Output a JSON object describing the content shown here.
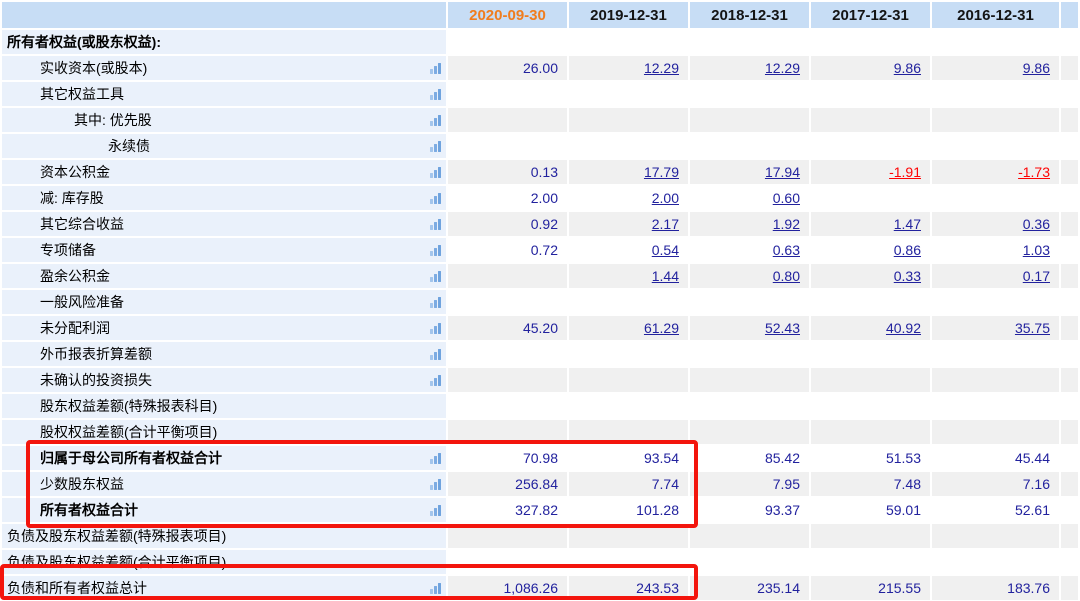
{
  "table": {
    "columns": [
      "2020-09-30",
      "2019-12-31",
      "2018-12-31",
      "2017-12-31",
      "2016-12-31"
    ],
    "current_column_color": "#f07d1e",
    "header_bg_color": "#c7ddf5",
    "value_text_color": "#22229e",
    "negative_value_color": "#fe0303",
    "rows": [
      {
        "label": "所有者权益(或股东权益):",
        "indent": 0,
        "bold": true,
        "icon": false,
        "cells": [
          "",
          "",
          "",
          "",
          ""
        ],
        "styles": [
          "",
          "",
          "",
          "",
          ""
        ]
      },
      {
        "label": "实收资本(或股本)",
        "indent": 1,
        "bold": false,
        "icon": true,
        "cells": [
          "26.00",
          "12.29",
          "12.29",
          "9.86",
          "9.86"
        ],
        "styles": [
          "plain",
          "link",
          "link",
          "link",
          "link"
        ]
      },
      {
        "label": "其它权益工具",
        "indent": 1,
        "bold": false,
        "icon": true,
        "cells": [
          "",
          "",
          "",
          "",
          ""
        ],
        "styles": [
          "",
          "",
          "",
          "",
          ""
        ]
      },
      {
        "label": "其中: 优先股",
        "indent": 2,
        "bold": false,
        "icon": true,
        "cells": [
          "",
          "",
          "",
          "",
          ""
        ],
        "styles": [
          "",
          "",
          "",
          "",
          ""
        ]
      },
      {
        "label": "永续债",
        "indent": 3,
        "bold": false,
        "icon": true,
        "cells": [
          "",
          "",
          "",
          "",
          ""
        ],
        "styles": [
          "",
          "",
          "",
          "",
          ""
        ]
      },
      {
        "label": "资本公积金",
        "indent": 1,
        "bold": false,
        "icon": true,
        "cells": [
          "0.13",
          "17.79",
          "17.94",
          "-1.91",
          "-1.73"
        ],
        "styles": [
          "plain",
          "link",
          "link",
          "neg",
          "neg"
        ]
      },
      {
        "label": "减: 库存股",
        "indent": 1,
        "bold": false,
        "icon": true,
        "cells": [
          "2.00",
          "2.00",
          "0.60",
          "",
          ""
        ],
        "styles": [
          "plain",
          "link",
          "link",
          "",
          ""
        ]
      },
      {
        "label": "其它综合收益",
        "indent": 1,
        "bold": false,
        "icon": true,
        "cells": [
          "0.92",
          "2.17",
          "1.92",
          "1.47",
          "0.36"
        ],
        "styles": [
          "plain",
          "link",
          "link",
          "link",
          "link"
        ]
      },
      {
        "label": "专项储备",
        "indent": 1,
        "bold": false,
        "icon": true,
        "cells": [
          "0.72",
          "0.54",
          "0.63",
          "0.86",
          "1.03"
        ],
        "styles": [
          "plain",
          "link",
          "link",
          "link",
          "link"
        ]
      },
      {
        "label": "盈余公积金",
        "indent": 1,
        "bold": false,
        "icon": true,
        "cells": [
          "",
          "1.44",
          "0.80",
          "0.33",
          "0.17"
        ],
        "styles": [
          "",
          "link",
          "link",
          "link",
          "link"
        ]
      },
      {
        "label": "一般风险准备",
        "indent": 1,
        "bold": false,
        "icon": true,
        "cells": [
          "",
          "",
          "",
          "",
          ""
        ],
        "styles": [
          "",
          "",
          "",
          "",
          ""
        ]
      },
      {
        "label": "未分配利润",
        "indent": 1,
        "bold": false,
        "icon": true,
        "cells": [
          "45.20",
          "61.29",
          "52.43",
          "40.92",
          "35.75"
        ],
        "styles": [
          "plain",
          "link",
          "link",
          "link",
          "link"
        ]
      },
      {
        "label": "外币报表折算差额",
        "indent": 1,
        "bold": false,
        "icon": true,
        "cells": [
          "",
          "",
          "",
          "",
          ""
        ],
        "styles": [
          "",
          "",
          "",
          "",
          ""
        ]
      },
      {
        "label": "未确认的投资损失",
        "indent": 1,
        "bold": false,
        "icon": true,
        "cells": [
          "",
          "",
          "",
          "",
          ""
        ],
        "styles": [
          "",
          "",
          "",
          "",
          ""
        ]
      },
      {
        "label": "股东权益差额(特殊报表科目)",
        "indent": 1,
        "bold": false,
        "icon": false,
        "cells": [
          "",
          "",
          "",
          "",
          ""
        ],
        "styles": [
          "",
          "",
          "",
          "",
          ""
        ]
      },
      {
        "label": "股权权益差额(合计平衡项目)",
        "indent": 1,
        "bold": false,
        "icon": false,
        "cells": [
          "",
          "",
          "",
          "",
          ""
        ],
        "styles": [
          "",
          "",
          "",
          "",
          ""
        ]
      },
      {
        "label": "归属于母公司所有者权益合计",
        "indent": 1,
        "bold": true,
        "icon": true,
        "cells": [
          "70.98",
          "93.54",
          "85.42",
          "51.53",
          "45.44"
        ],
        "styles": [
          "plain",
          "plain",
          "plain",
          "plain",
          "plain"
        ]
      },
      {
        "label": "少数股东权益",
        "indent": 1,
        "bold": false,
        "icon": true,
        "cells": [
          "256.84",
          "7.74",
          "7.95",
          "7.48",
          "7.16"
        ],
        "styles": [
          "plain",
          "plain",
          "plain",
          "plain",
          "plain"
        ]
      },
      {
        "label": "所有者权益合计",
        "indent": 1,
        "bold": true,
        "icon": true,
        "cells": [
          "327.82",
          "101.28",
          "93.37",
          "59.01",
          "52.61"
        ],
        "styles": [
          "plain",
          "plain",
          "plain",
          "plain",
          "plain"
        ]
      },
      {
        "label": "负债及股东权益差额(特殊报表项目)",
        "indent": 0,
        "bold": false,
        "icon": false,
        "cells": [
          "",
          "",
          "",
          "",
          ""
        ],
        "styles": [
          "",
          "",
          "",
          "",
          ""
        ]
      },
      {
        "label": "负债及股东权益差额(合计平衡项目)",
        "indent": 0,
        "bold": false,
        "icon": false,
        "cells": [
          "",
          "",
          "",
          "",
          ""
        ],
        "styles": [
          "",
          "",
          "",
          "",
          ""
        ]
      },
      {
        "label": "负债和所有者权益总计",
        "indent": 0,
        "bold": false,
        "icon": true,
        "cells": [
          "1,086.26",
          "243.53",
          "235.14",
          "215.55",
          "183.76"
        ],
        "styles": [
          "plain",
          "plain",
          "plain",
          "plain",
          "plain"
        ]
      }
    ]
  },
  "annotations": {
    "box_color": "#f3150d",
    "box1_rows": "归属于母公司所有者权益合计 / 少数股东权益 / 所有者权益合计",
    "box2_rows": "负债和所有者权益总计"
  }
}
